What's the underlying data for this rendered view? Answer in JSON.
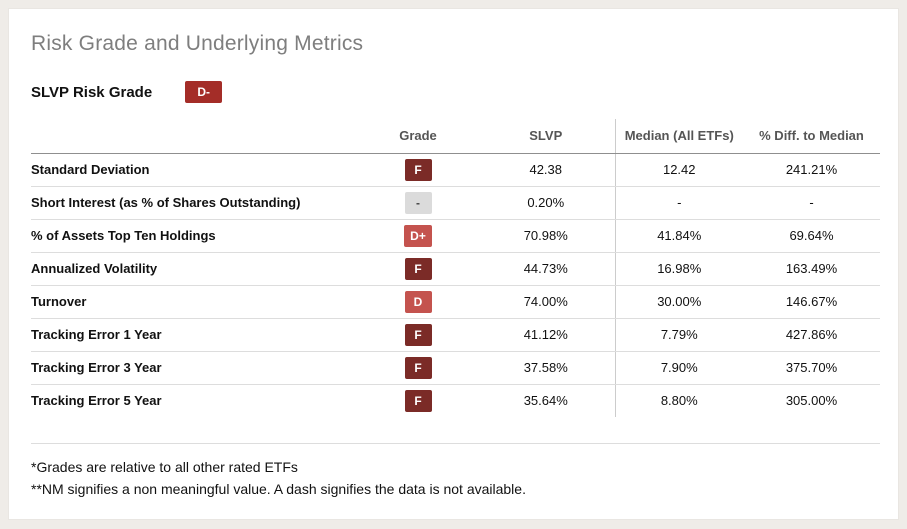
{
  "colors": {
    "grade_f_bg": "#7B2B27",
    "grade_d_minus_bg": "#A42D28",
    "grade_d_bg": "#C4534E",
    "grade_na_bg": "#DBDBDB",
    "grade_na_fg": "#444444",
    "grade_fg": "#FFFFFF",
    "title_gray": "#7E7E7E"
  },
  "header": {
    "page_title": "Risk Grade and Underlying Metrics",
    "risk_grade_label": "SLVP Risk Grade",
    "risk_grade_value": "D-",
    "risk_grade_bg": "#A42D28",
    "risk_grade_fg": "#FFFFFF"
  },
  "table": {
    "columns": {
      "metric": "",
      "grade": "Grade",
      "slvp": "SLVP",
      "median": "Median (All ETFs)",
      "diff": "% Diff. to Median"
    },
    "rows": [
      {
        "metric": "Standard Deviation",
        "grade": "F",
        "grade_bg": "#7B2B27",
        "grade_fg": "#FFFFFF",
        "slvp": "42.38",
        "median": "12.42",
        "diff": "241.21%"
      },
      {
        "metric": "Short Interest (as % of Shares Outstanding)",
        "grade": "-",
        "grade_bg": "#DBDBDB",
        "grade_fg": "#444444",
        "slvp": "0.20%",
        "median": "-",
        "diff": "-"
      },
      {
        "metric": "% of Assets Top Ten Holdings",
        "grade": "D+",
        "grade_bg": "#C4534E",
        "grade_fg": "#FFFFFF",
        "slvp": "70.98%",
        "median": "41.84%",
        "diff": "69.64%"
      },
      {
        "metric": "Annualized Volatility",
        "grade": "F",
        "grade_bg": "#7B2B27",
        "grade_fg": "#FFFFFF",
        "slvp": "44.73%",
        "median": "16.98%",
        "diff": "163.49%"
      },
      {
        "metric": "Turnover",
        "grade": "D",
        "grade_bg": "#C4534E",
        "grade_fg": "#FFFFFF",
        "slvp": "74.00%",
        "median": "30.00%",
        "diff": "146.67%"
      },
      {
        "metric": "Tracking Error 1 Year",
        "grade": "F",
        "grade_bg": "#7B2B27",
        "grade_fg": "#FFFFFF",
        "slvp": "41.12%",
        "median": "7.79%",
        "diff": "427.86%"
      },
      {
        "metric": "Tracking Error 3 Year",
        "grade": "F",
        "grade_bg": "#7B2B27",
        "grade_fg": "#FFFFFF",
        "slvp": "37.58%",
        "median": "7.90%",
        "diff": "375.70%"
      },
      {
        "metric": "Tracking Error 5 Year",
        "grade": "F",
        "grade_bg": "#7B2B27",
        "grade_fg": "#FFFFFF",
        "slvp": "35.64%",
        "median": "8.80%",
        "diff": "305.00%"
      }
    ]
  },
  "footnotes": {
    "line1": "*Grades are relative to all other rated ETFs",
    "line2": "**NM signifies a non meaningful value. A dash signifies the data is not available."
  }
}
